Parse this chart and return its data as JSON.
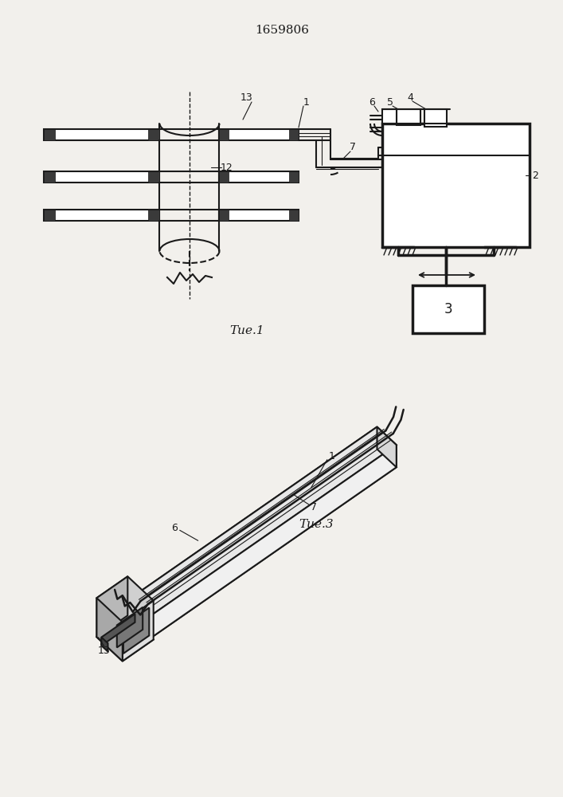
{
  "title": "1659806",
  "fig1_label": "Τие.1",
  "fig3_label": "Τие.3",
  "bg_color": "#f2f0ec",
  "lc": "#1a1a1a",
  "lw": 1.5,
  "tlw": 2.5
}
